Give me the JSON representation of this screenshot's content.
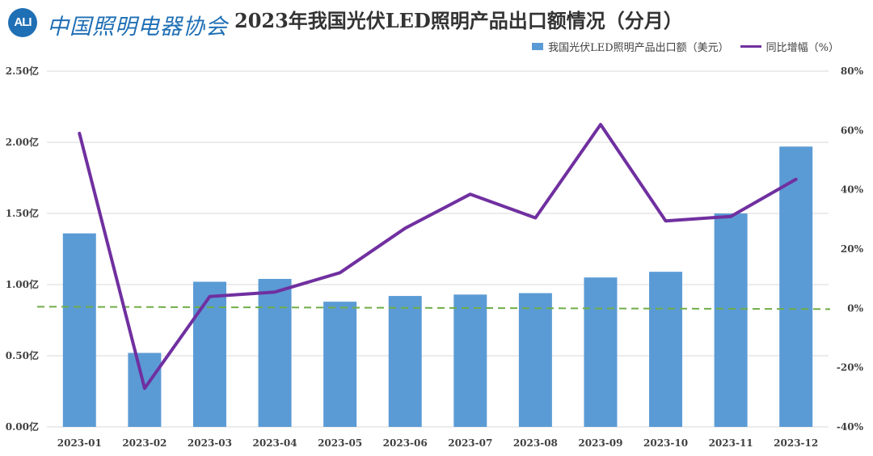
{
  "logo": {
    "badge": "ALI",
    "name": "中国照明电器协会"
  },
  "chart_data": {
    "type": "bar+line",
    "title": "2023年我国光伏LED照明产品出口额情况（分月）",
    "categories": [
      "2023-01",
      "2023-02",
      "2023-03",
      "2023-04",
      "2023-05",
      "2023-06",
      "2023-07",
      "2023-08",
      "2023-09",
      "2023-10",
      "2023-11",
      "2023-12"
    ],
    "series": [
      {
        "name": "我国光伏LED照明产品出口额（美元）",
        "axis": "left",
        "type": "bar",
        "color": "#5b9bd5",
        "values": [
          1.36,
          0.52,
          1.02,
          1.04,
          0.88,
          0.92,
          0.93,
          0.94,
          1.05,
          1.09,
          1.5,
          1.97
        ]
      },
      {
        "name": "同比增幅（%）",
        "axis": "right",
        "type": "line",
        "color": "#7030a0",
        "values": [
          59,
          -27,
          4,
          5.5,
          12,
          27,
          38.5,
          30.5,
          62,
          29.5,
          31,
          43.5
        ]
      }
    ],
    "left_axis": {
      "ylim": [
        0,
        2.5
      ],
      "ticks": [
        "0.00亿",
        "0.50亿",
        "1.00亿",
        "1.50亿",
        "2.00亿",
        "2.50亿"
      ]
    },
    "right_axis": {
      "ylim": [
        -40,
        80
      ],
      "ticks": [
        "-40%",
        "-20%",
        "0%",
        "20%",
        "40%",
        "60%",
        "80%"
      ]
    },
    "reference_line": {
      "axis": "right",
      "value": 0,
      "style": "dashed",
      "color": "#70ad47"
    },
    "legend_position": "top-right"
  }
}
